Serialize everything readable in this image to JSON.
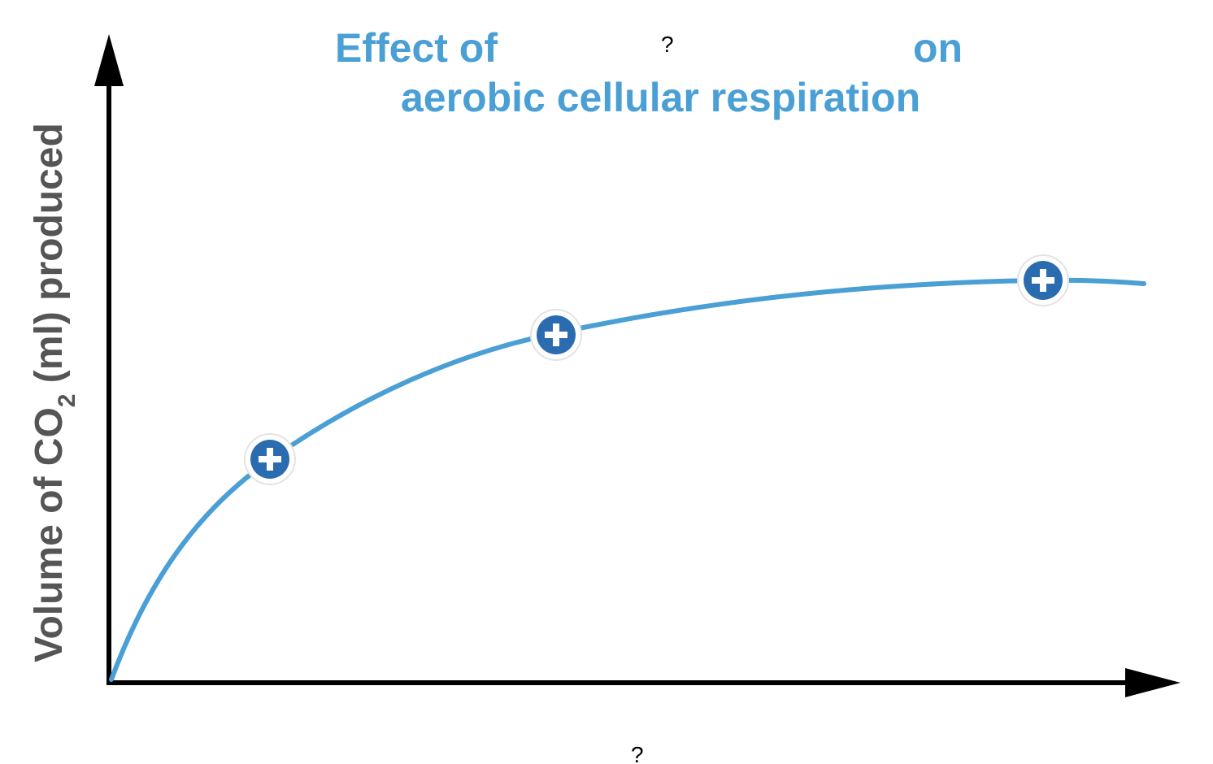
{
  "title": {
    "prefix": "Effect of",
    "blank": "?",
    "suffix": "on",
    "line2": "aerobic cellular respiration"
  },
  "ylabel": {
    "part1": "Volume of CO",
    "subscript": "2",
    "part2": " (ml) produced"
  },
  "xlabel": {
    "blank": "?"
  },
  "hotspots": [
    {
      "name": "hotspot-1",
      "glyph": "+"
    },
    {
      "name": "hotspot-2",
      "glyph": "+"
    },
    {
      "name": "hotspot-3",
      "glyph": "+"
    }
  ],
  "colors": {
    "accent": "#4a9fd5",
    "hotspot_fill": "#2b6cb0",
    "ylabel": "#555555",
    "axis": "#000000"
  },
  "chart_data": {
    "type": "line",
    "shape": "saturating curve rising from origin and leveling off",
    "xlabel": "?",
    "ylabel": "Volume of CO2 (ml) produced",
    "title": "Effect of ? on aerobic cellular respiration",
    "grid": false,
    "legend": "none"
  }
}
